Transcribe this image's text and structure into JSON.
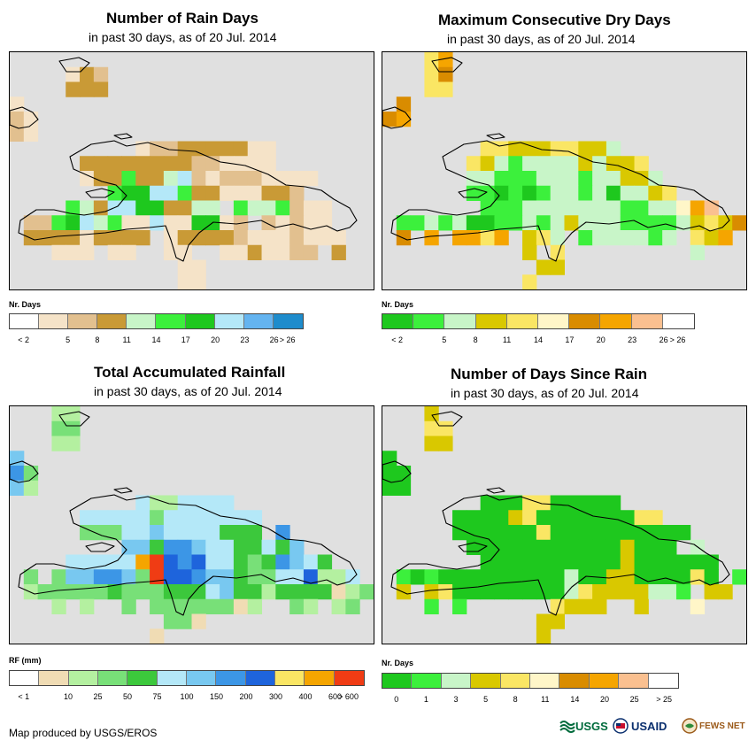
{
  "panels": [
    {
      "title": "Number of Rain Days",
      "subtitle": "in past 30 days, as of 20 Jul. 2014",
      "legend_title": "Nr. Days",
      "legend_colors": [
        "#ffffff",
        "#f5e3c8",
        "#e2c08f",
        "#c99a36",
        "#c8f5c8",
        "#3cf03c",
        "#1ec81e",
        "#b4e8f8",
        "#64b4f0",
        "#1e8ccc"
      ],
      "legend_labels": [
        "< 2",
        "5",
        "8",
        "11",
        "14",
        "17",
        "20",
        "23",
        "26",
        "> 26"
      ],
      "palette": [
        "#ffffff",
        "#f5e3c8",
        "#e2c08f",
        "#c99a36",
        "#c8f5c8",
        "#3cf03c",
        "#1ec81e",
        "#b4e8f8",
        "#64b4f0"
      ],
      "grid": [
        "..........................",
        "....132...................",
        "....333...................",
        "1.........................",
        "21........................",
        "21..........................",
        ".........1223333311.......",
        ".....33333333221111.......",
        ".....13353347212221111....",
        ".......56677533111332.....",
        "....54377663344.5445211...",
        ".2256745117116612.21211...",
        ".333313333.1333321112111..",
        "...111.11..11..1131122.3..",
        "............11............",
        "............11............"
      ]
    },
    {
      "title": "Maximum Consecutive Dry Days",
      "subtitle": "in past 30 days, as of 20 Jul. 2014",
      "legend_title": "Nr. Days",
      "legend_colors": [
        "#1ec81e",
        "#3cf03c",
        "#c8f5c8",
        "#d9c800",
        "#fae664",
        "#fff6c8",
        "#d98c00",
        "#f5a500",
        "#fac090",
        "#ffffff"
      ],
      "legend_labels": [
        "< 2",
        "5",
        "8",
        "11",
        "14",
        "17",
        "20",
        "23",
        "26",
        "> 26"
      ],
      "palette": [
        "#1ec81e",
        "#3cf03c",
        "#c8f5c8",
        "#d9c800",
        "#fae664",
        "#fff6c8",
        "#d98c00",
        "#f5a500",
        "#fac090",
        "#ffffff"
      ],
      "grid": [
        "...47.....................",
        "...46.....................",
        "...44.....................",
        ".6........................",
        "67........................",
        "..........................",
        ".......4433344332.........",
        "......4321222232334.......",
        "......22111222122332......",
        "......110101221202234.....",
        ".......11122222221122578..",
        ".1121200112123222111123436",
        ".6.7.7747.342.1222212.437.",
        "..........3.4.........2...",
        "...........33.............",
        "..........4..............."
      ]
    },
    {
      "title": "Total Accumulated Rainfall",
      "subtitle": "in past 30 days, as of 20 Jul. 2014",
      "legend_title": "RF (mm)",
      "legend_colors": [
        "#ffffff",
        "#f0dcb4",
        "#b4f0a0",
        "#78e078",
        "#3cc83c",
        "#b4e8f8",
        "#78c8f0",
        "#3c96e6",
        "#1e64dc",
        "#fae664",
        "#f5a500",
        "#f03c14"
      ],
      "legend_labels": [
        "< 1",
        "10",
        "25",
        "50",
        "75",
        "100",
        "150",
        "200",
        "300",
        "400",
        "600",
        "> 600"
      ],
      "palette": [
        "#ffffff",
        "#f0dcb4",
        "#b4f0a0",
        "#78e078",
        "#3cc83c",
        "#b4e8f8",
        "#78c8f0",
        "#3c96e6",
        "#1e64dc",
        "#fae664",
        "#f5a500",
        "#f03c14"
      ],
      "grid": [
        "...22.....................",
        "...33.....................",
        "...22.....................",
        "6.........................",
        "73........................",
        "62........................",
        ".........5225555..........",
        ".....5555535555555........",
        ".....3335565555444.7......",
        "........6647765544546.....",
        "....55555ab878554347654...",
        ".3.3667763b88766433558225.",
        ".2333334333444564424444123",
        "...2.2..3.33333312..32.23.",
        "...........331............",
        "..........1..............."
      ]
    },
    {
      "title": "Number of Days Since Rain",
      "subtitle": "in past 30 days, as of 20 Jul. 2014",
      "legend_title": "Nr. Days",
      "legend_colors": [
        "#1ec81e",
        "#3cf03c",
        "#c8f5c8",
        "#d9c800",
        "#fae664",
        "#fff6c8",
        "#d98c00",
        "#f5a500",
        "#fac090",
        "#ffffff"
      ],
      "legend_labels": [
        "0",
        "1",
        "3",
        "5",
        "8",
        "11",
        "14",
        "20",
        "25",
        "> 25"
      ],
      "palette": [
        "#1ec81e",
        "#3cf03c",
        "#c8f5c8",
        "#d9c800",
        "#fae664",
        "#fff6c8",
        "#d98c00",
        "#f5a500",
        "#fac090",
        "#ffffff"
      ],
      "grid": [
        "...3......................",
        "...44.....................",
        "...33.....................",
        "0.........................",
        "00........................",
        "00........................",
        ".......0004400000..........",
        ".....000034000000044.......",
        ".....00000040000000000.....",
        "......000000000003000.2....",
        ".......00000000003000000...",
        ".10100000000020033000040.1.",
        ".3.3400000000243333221.33..",
        "...1.1......4333..3...5....",
        "...........33.............",
        "...........3..............."
      ]
    }
  ],
  "footer": {
    "credit": "Map produced by USGS/EROS",
    "logo_usgs": "USGS",
    "logo_usaid": "USAID",
    "logo_fews": "FEWS NET"
  }
}
